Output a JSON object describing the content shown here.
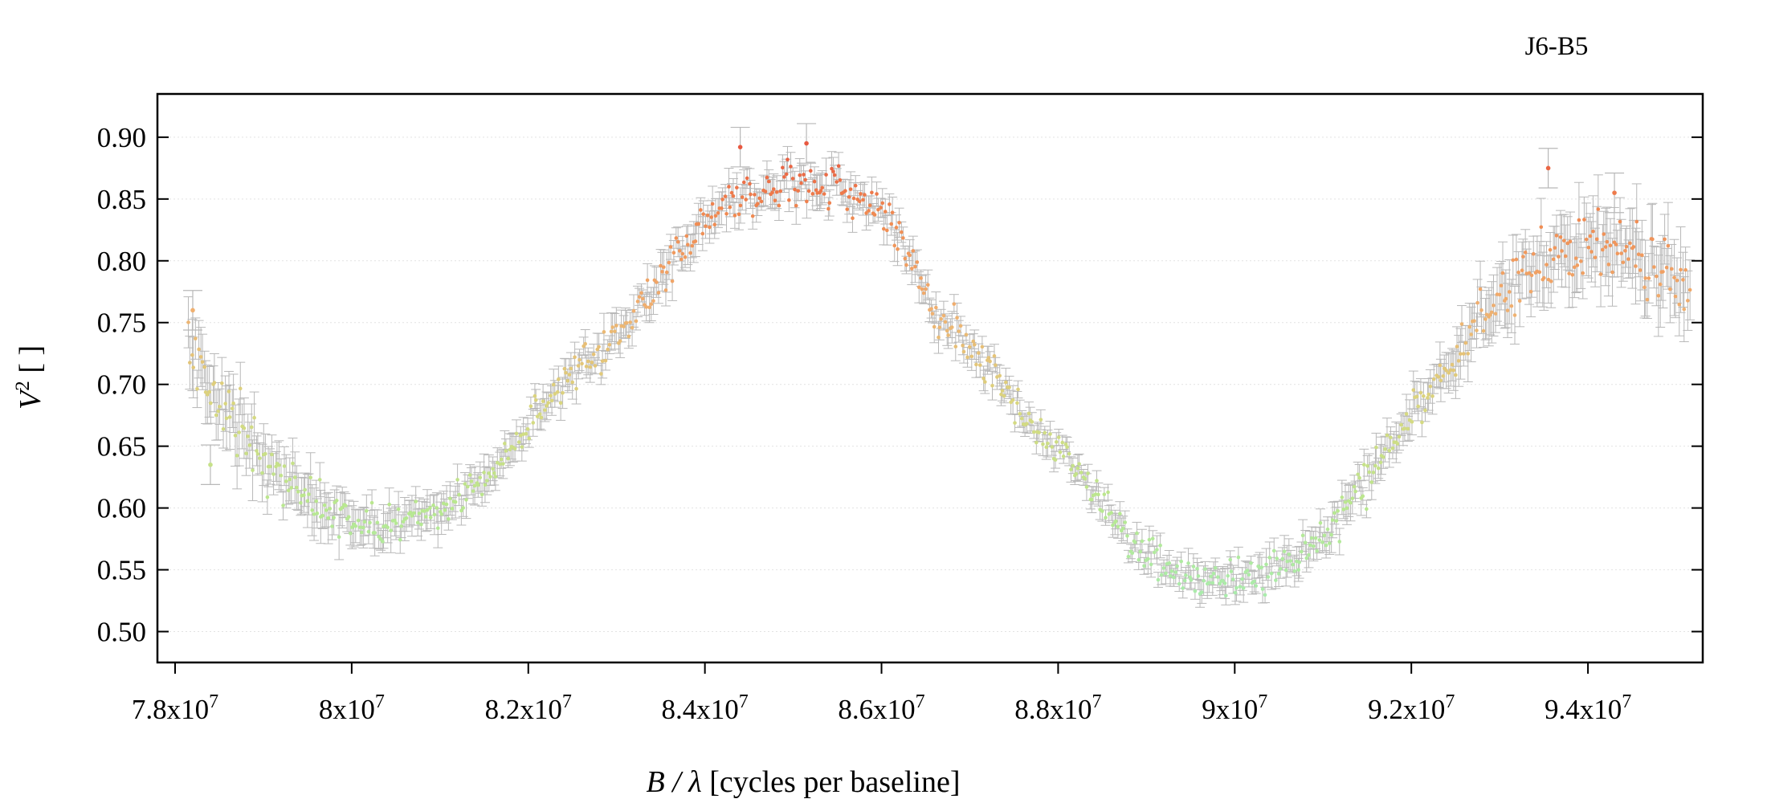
{
  "chart_data": {
    "type": "scatter",
    "title": "J6-B5",
    "xlabel_italic": "B / λ",
    "xlabel_rest": " [cycles per baseline]",
    "ylabel_base": "V",
    "ylabel_sup": "2",
    "ylabel_rest": " [ ]",
    "xlim": [
      77800000,
      95300000
    ],
    "ylim": [
      0.475,
      0.935
    ],
    "x_ticks": [
      {
        "value": 78000000,
        "mantissa": "7.8x10",
        "exp": "7"
      },
      {
        "value": 80000000,
        "mantissa": "8x10",
        "exp": "7"
      },
      {
        "value": 82000000,
        "mantissa": "8.2x10",
        "exp": "7"
      },
      {
        "value": 84000000,
        "mantissa": "8.4x10",
        "exp": "7"
      },
      {
        "value": 86000000,
        "mantissa": "8.6x10",
        "exp": "7"
      },
      {
        "value": 88000000,
        "mantissa": "8.8x10",
        "exp": "7"
      },
      {
        "value": 90000000,
        "mantissa": "9x10",
        "exp": "7"
      },
      {
        "value": 92000000,
        "mantissa": "9.2x10",
        "exp": "7"
      },
      {
        "value": 94000000,
        "mantissa": "9.4x10",
        "exp": "7"
      }
    ],
    "y_ticks": [
      {
        "value": 0.5,
        "label": "0.50"
      },
      {
        "value": 0.55,
        "label": "0.55"
      },
      {
        "value": 0.6,
        "label": "0.60"
      },
      {
        "value": 0.65,
        "label": "0.65"
      },
      {
        "value": 0.7,
        "label": "0.70"
      },
      {
        "value": 0.75,
        "label": "0.75"
      },
      {
        "value": 0.8,
        "label": "0.80"
      },
      {
        "value": 0.85,
        "label": "0.85"
      },
      {
        "value": 0.9,
        "label": "0.90"
      }
    ],
    "grid": true,
    "grid_axis": "y",
    "errorbar_color": "#b8b8b8",
    "point_colormap": [
      {
        "v": 0.52,
        "color": "#a8ecb0"
      },
      {
        "v": 0.6,
        "color": "#b8e890"
      },
      {
        "v": 0.68,
        "color": "#d8d880"
      },
      {
        "v": 0.76,
        "color": "#f0b070"
      },
      {
        "v": 0.84,
        "color": "#f08850"
      },
      {
        "v": 0.89,
        "color": "#e85840"
      }
    ],
    "series": [
      {
        "x_range": [
          78150000,
          95150000
        ],
        "points": 860,
        "trend": [
          [
            78150000,
            0.735
          ],
          [
            78400000,
            0.695
          ],
          [
            78700000,
            0.665
          ],
          [
            79000000,
            0.64
          ],
          [
            79400000,
            0.615
          ],
          [
            79800000,
            0.595
          ],
          [
            80100000,
            0.585
          ],
          [
            80400000,
            0.585
          ],
          [
            80800000,
            0.592
          ],
          [
            81200000,
            0.605
          ],
          [
            81600000,
            0.63
          ],
          [
            82000000,
            0.665
          ],
          [
            82400000,
            0.7
          ],
          [
            82800000,
            0.725
          ],
          [
            83000000,
            0.745
          ],
          [
            83400000,
            0.775
          ],
          [
            83700000,
            0.805
          ],
          [
            84000000,
            0.835
          ],
          [
            84300000,
            0.848
          ],
          [
            84700000,
            0.858
          ],
          [
            85100000,
            0.862
          ],
          [
            85500000,
            0.86
          ],
          [
            85900000,
            0.848
          ],
          [
            86300000,
            0.815
          ],
          [
            86500000,
            0.785
          ],
          [
            86600000,
            0.75
          ],
          [
            86900000,
            0.74
          ],
          [
            87300000,
            0.705
          ],
          [
            87700000,
            0.67
          ],
          [
            88100000,
            0.64
          ],
          [
            88500000,
            0.605
          ],
          [
            88900000,
            0.57
          ],
          [
            89300000,
            0.548
          ],
          [
            89700000,
            0.54
          ],
          [
            90100000,
            0.54
          ],
          [
            90500000,
            0.55
          ],
          [
            90900000,
            0.57
          ],
          [
            91300000,
            0.605
          ],
          [
            91700000,
            0.645
          ],
          [
            92100000,
            0.685
          ],
          [
            92500000,
            0.725
          ],
          [
            92900000,
            0.76
          ],
          [
            93300000,
            0.79
          ],
          [
            93700000,
            0.805
          ],
          [
            94100000,
            0.812
          ],
          [
            94400000,
            0.81
          ],
          [
            94800000,
            0.79
          ],
          [
            95150000,
            0.77
          ]
        ],
        "scatter": [
          [
            78150000,
            0.018
          ],
          [
            79500000,
            0.015
          ],
          [
            80500000,
            0.01
          ],
          [
            82000000,
            0.01
          ],
          [
            84000000,
            0.012
          ],
          [
            85500000,
            0.015
          ],
          [
            86500000,
            0.014
          ],
          [
            88000000,
            0.01
          ],
          [
            90000000,
            0.01
          ],
          [
            92000000,
            0.012
          ],
          [
            93500000,
            0.02
          ],
          [
            95150000,
            0.018
          ]
        ],
        "errorbar": [
          [
            78150000,
            0.022
          ],
          [
            80000000,
            0.014
          ],
          [
            82000000,
            0.01
          ],
          [
            84000000,
            0.012
          ],
          [
            86000000,
            0.01
          ],
          [
            88000000,
            0.008
          ],
          [
            90000000,
            0.009
          ],
          [
            92000000,
            0.012
          ],
          [
            93500000,
            0.022
          ],
          [
            95150000,
            0.026
          ]
        ]
      }
    ],
    "outliers": [
      {
        "x": 93550000,
        "y": 0.875
      },
      {
        "x": 78200000,
        "y": 0.76
      },
      {
        "x": 78400000,
        "y": 0.635
      },
      {
        "x": 84400000,
        "y": 0.892
      },
      {
        "x": 85150000,
        "y": 0.895
      },
      {
        "x": 94300000,
        "y": 0.855
      }
    ]
  }
}
